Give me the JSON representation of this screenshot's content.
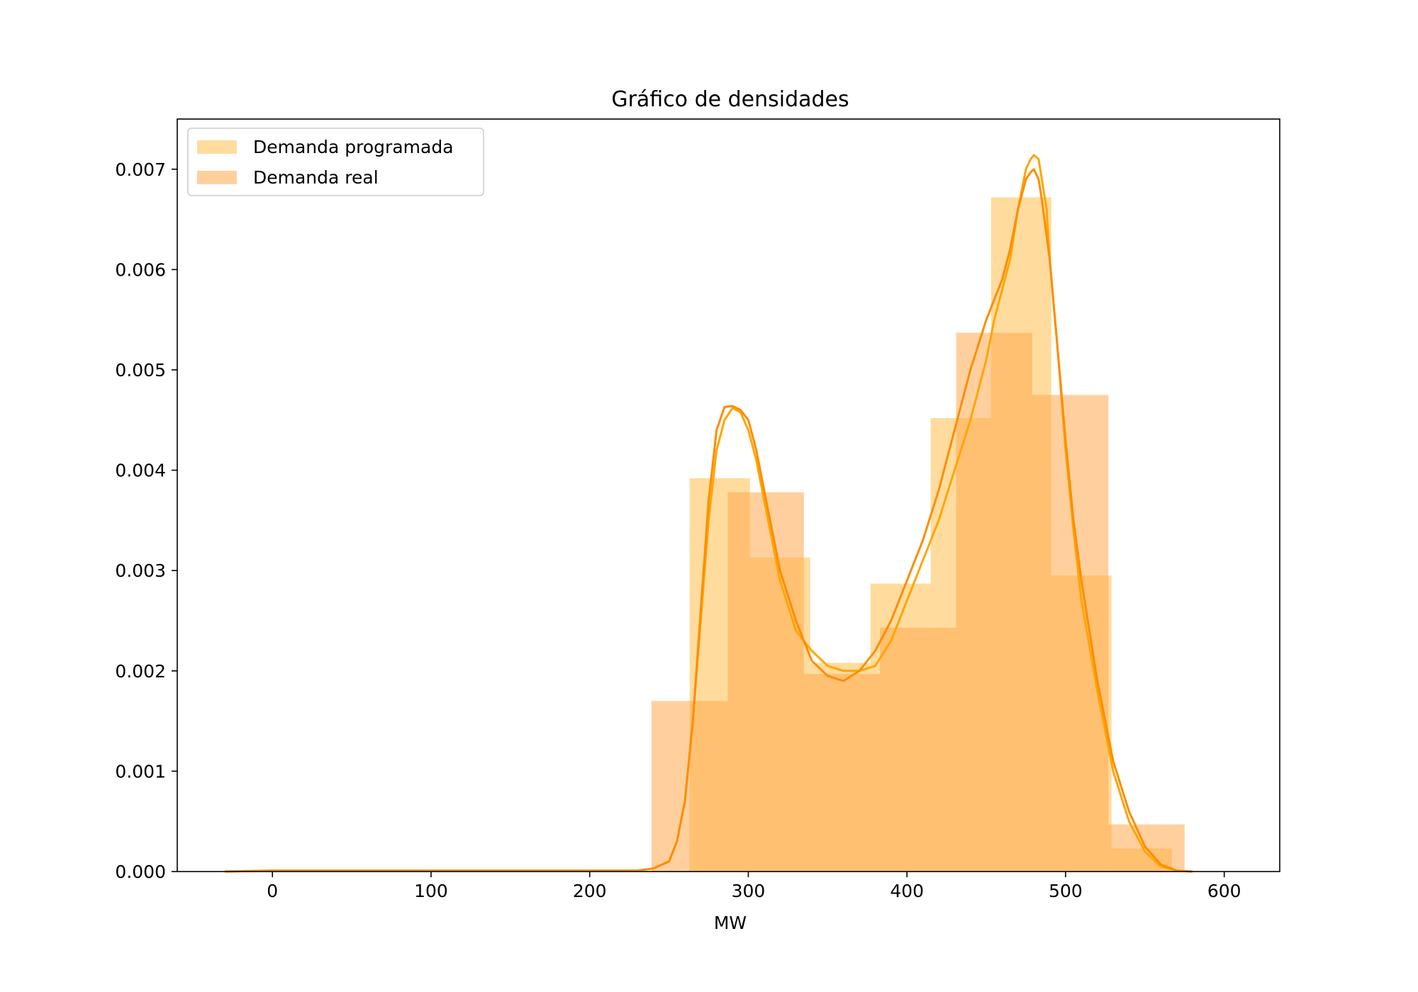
{
  "chart_data": {
    "type": "histogram",
    "title": "Gráfico de densidades",
    "xlabel": "MW",
    "ylabel": "",
    "xlim": [
      -60,
      635
    ],
    "ylim": [
      0,
      0.0075
    ],
    "xticks": [
      0,
      100,
      200,
      300,
      400,
      500,
      600
    ],
    "xtick_labels": [
      "0",
      "100",
      "200",
      "300",
      "400",
      "500",
      "600"
    ],
    "yticks": [
      0,
      0.001,
      0.002,
      0.003,
      0.004,
      0.005,
      0.006,
      0.007
    ],
    "ytick_labels": [
      "0.000",
      "0.001",
      "0.002",
      "0.003",
      "0.004",
      "0.005",
      "0.006",
      "0.007"
    ],
    "grid": false,
    "legend_position": "upper-left",
    "series": [
      {
        "name": "Demanda programada",
        "color": "#ffc04d",
        "bin_edges": [
          263,
          301,
          339,
          377,
          415,
          453,
          491,
          529,
          567
        ],
        "values": [
          0.00392,
          0.00313,
          0.00208,
          0.00287,
          0.00452,
          0.00672,
          0.00295,
          0.00023
        ],
        "kde": {
          "color": "#ffa500",
          "x": [
            -30,
            0,
            100,
            200,
            230,
            240,
            250,
            255,
            260,
            265,
            270,
            275,
            280,
            285,
            290,
            295,
            300,
            305,
            310,
            315,
            320,
            330,
            340,
            350,
            360,
            370,
            380,
            390,
            400,
            410,
            420,
            430,
            440,
            450,
            455,
            460,
            465,
            470,
            475,
            478,
            480,
            483,
            485,
            488,
            490,
            495,
            500,
            505,
            510,
            520,
            530,
            540,
            550,
            560,
            570,
            580
          ],
          "y": [
            0.0,
            1e-05,
            1e-05,
            1e-05,
            1e-05,
            3e-05,
            0.0001,
            0.0003,
            0.0007,
            0.0015,
            0.0025,
            0.0035,
            0.0042,
            0.0045,
            0.00462,
            0.00458,
            0.0044,
            0.0041,
            0.0037,
            0.0033,
            0.0029,
            0.0024,
            0.0022,
            0.00205,
            0.002,
            0.002,
            0.00205,
            0.0023,
            0.0027,
            0.0031,
            0.0035,
            0.004,
            0.0045,
            0.0051,
            0.0055,
            0.0058,
            0.0061,
            0.0066,
            0.007,
            0.0071,
            0.00714,
            0.0071,
            0.0069,
            0.0066,
            0.0061,
            0.0052,
            0.0042,
            0.0034,
            0.0027,
            0.0018,
            0.001,
            0.0005,
            0.0002,
            5e-05,
            1e-05,
            0.0
          ]
        }
      },
      {
        "name": "Demanda real",
        "color": "#ffa94d",
        "bin_edges": [
          239,
          287,
          335,
          383,
          431,
          479,
          527,
          575
        ],
        "values": [
          0.0017,
          0.00378,
          0.00197,
          0.00243,
          0.00537,
          0.00475,
          0.00047
        ],
        "kde": {
          "color": "#ff8c00",
          "x": [
            -30,
            0,
            100,
            200,
            230,
            240,
            250,
            255,
            260,
            265,
            270,
            275,
            280,
            285,
            290,
            295,
            300,
            305,
            310,
            315,
            320,
            330,
            340,
            350,
            360,
            370,
            380,
            390,
            400,
            410,
            420,
            430,
            440,
            450,
            460,
            465,
            470,
            475,
            478,
            480,
            483,
            485,
            490,
            495,
            500,
            505,
            510,
            520,
            530,
            540,
            550,
            560,
            570,
            580
          ],
          "y": [
            0.0,
            1e-05,
            1e-05,
            1e-05,
            1e-05,
            3e-05,
            0.0001,
            0.0003,
            0.0007,
            0.0015,
            0.0026,
            0.0037,
            0.0044,
            0.00463,
            0.00464,
            0.0046,
            0.0045,
            0.0042,
            0.0038,
            0.0034,
            0.003,
            0.0025,
            0.0021,
            0.00195,
            0.0019,
            0.002,
            0.0022,
            0.0025,
            0.0029,
            0.0033,
            0.0038,
            0.0044,
            0.005,
            0.0055,
            0.0059,
            0.0062,
            0.0066,
            0.0069,
            0.00697,
            0.007,
            0.0069,
            0.0067,
            0.0061,
            0.0052,
            0.0043,
            0.0035,
            0.0029,
            0.0019,
            0.0011,
            0.0006,
            0.00025,
            7e-05,
            1e-05,
            0.0
          ]
        }
      }
    ]
  }
}
